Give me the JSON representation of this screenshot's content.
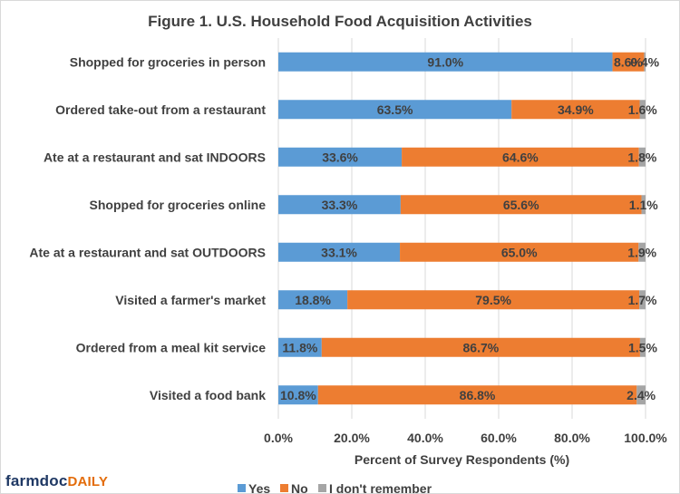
{
  "title": "Figure  1. U.S. Household  Food Acquisition  Activities",
  "logo": {
    "part1": "farmdoc",
    "part2": "DAILY"
  },
  "colors": {
    "yes": "#5b9bd5",
    "no": "#ed7d31",
    "dont_remember": "#a5a5a5",
    "text": "#404040",
    "grid": "#d9d9d9"
  },
  "chart_data": {
    "type": "bar",
    "orientation": "horizontal",
    "stacked": true,
    "categories": [
      "Shopped for groceries in person",
      "Ordered take-out from a restaurant",
      "Ate at a restaurant and sat INDOORS",
      "Shopped for groceries online",
      "Ate at a restaurant and sat OUTDOORS",
      "Visited a farmer's market",
      "Ordered from a meal kit service",
      "Visited a food bank"
    ],
    "series": [
      {
        "name": "Yes",
        "values": [
          91.0,
          63.5,
          33.6,
          33.3,
          33.1,
          18.8,
          11.8,
          10.8
        ],
        "labels": [
          "91.0%",
          "63.5%",
          "33.6%",
          "33.3%",
          "33.1%",
          "18.8%",
          "11.8%",
          "10.8%"
        ]
      },
      {
        "name": "No",
        "values": [
          8.6,
          34.9,
          64.6,
          65.6,
          65.0,
          79.5,
          86.7,
          86.8
        ],
        "labels": [
          "8.6%",
          "34.9%",
          "64.6%",
          "65.6%",
          "65.0%",
          "79.5%",
          "86.7%",
          "86.8%"
        ]
      },
      {
        "name": "I don't remember",
        "values": [
          0.4,
          1.6,
          1.8,
          1.1,
          1.9,
          1.7,
          1.5,
          2.4
        ],
        "labels": [
          "0.4%",
          "1.6%",
          "1.8%",
          "1.1%",
          "1.9%",
          "1.7%",
          "1.5%",
          "2.4%"
        ]
      }
    ],
    "xticks": [
      "0.0%",
      "20.0%",
      "40.0%",
      "60.0%",
      "80.0%",
      "100.0%"
    ],
    "xlabel": "Percent of Survey Respondents (%)",
    "ylabel": "",
    "xlim": [
      0,
      100
    ],
    "grid": "vertical",
    "legend_position": "bottom"
  }
}
